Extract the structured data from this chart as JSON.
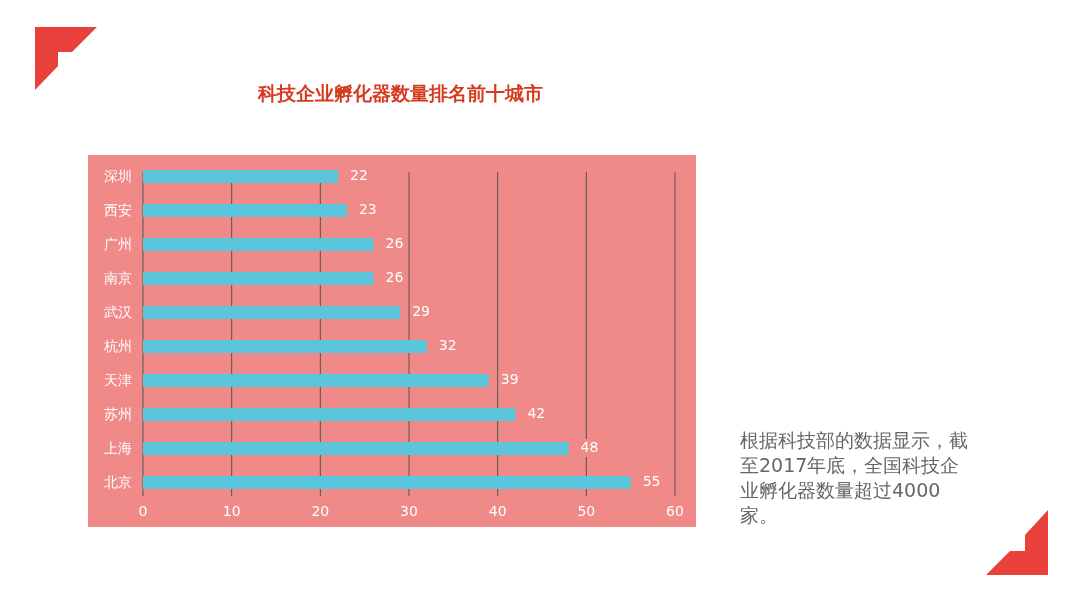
{
  "chart_data": {
    "type": "bar",
    "orientation": "horizontal",
    "title": "科技企业孵化器数量排名前十城市",
    "categories": [
      "深圳",
      "西安",
      "广州",
      "南京",
      "武汉",
      "杭州",
      "天津",
      "苏州",
      "上海",
      "北京"
    ],
    "values": [
      22,
      23,
      26,
      26,
      29,
      32,
      39,
      42,
      48,
      55
    ],
    "color": "#5bc5dc",
    "xlim": [
      0,
      60
    ],
    "xticks": [
      0,
      10,
      20,
      30,
      40,
      50,
      60
    ],
    "grid": "x",
    "data_labels": true,
    "annotations": [
      "根据科技部的数据显示，截至2017年底，全国科技企业孵化器数量超过4000家。"
    ]
  }
}
